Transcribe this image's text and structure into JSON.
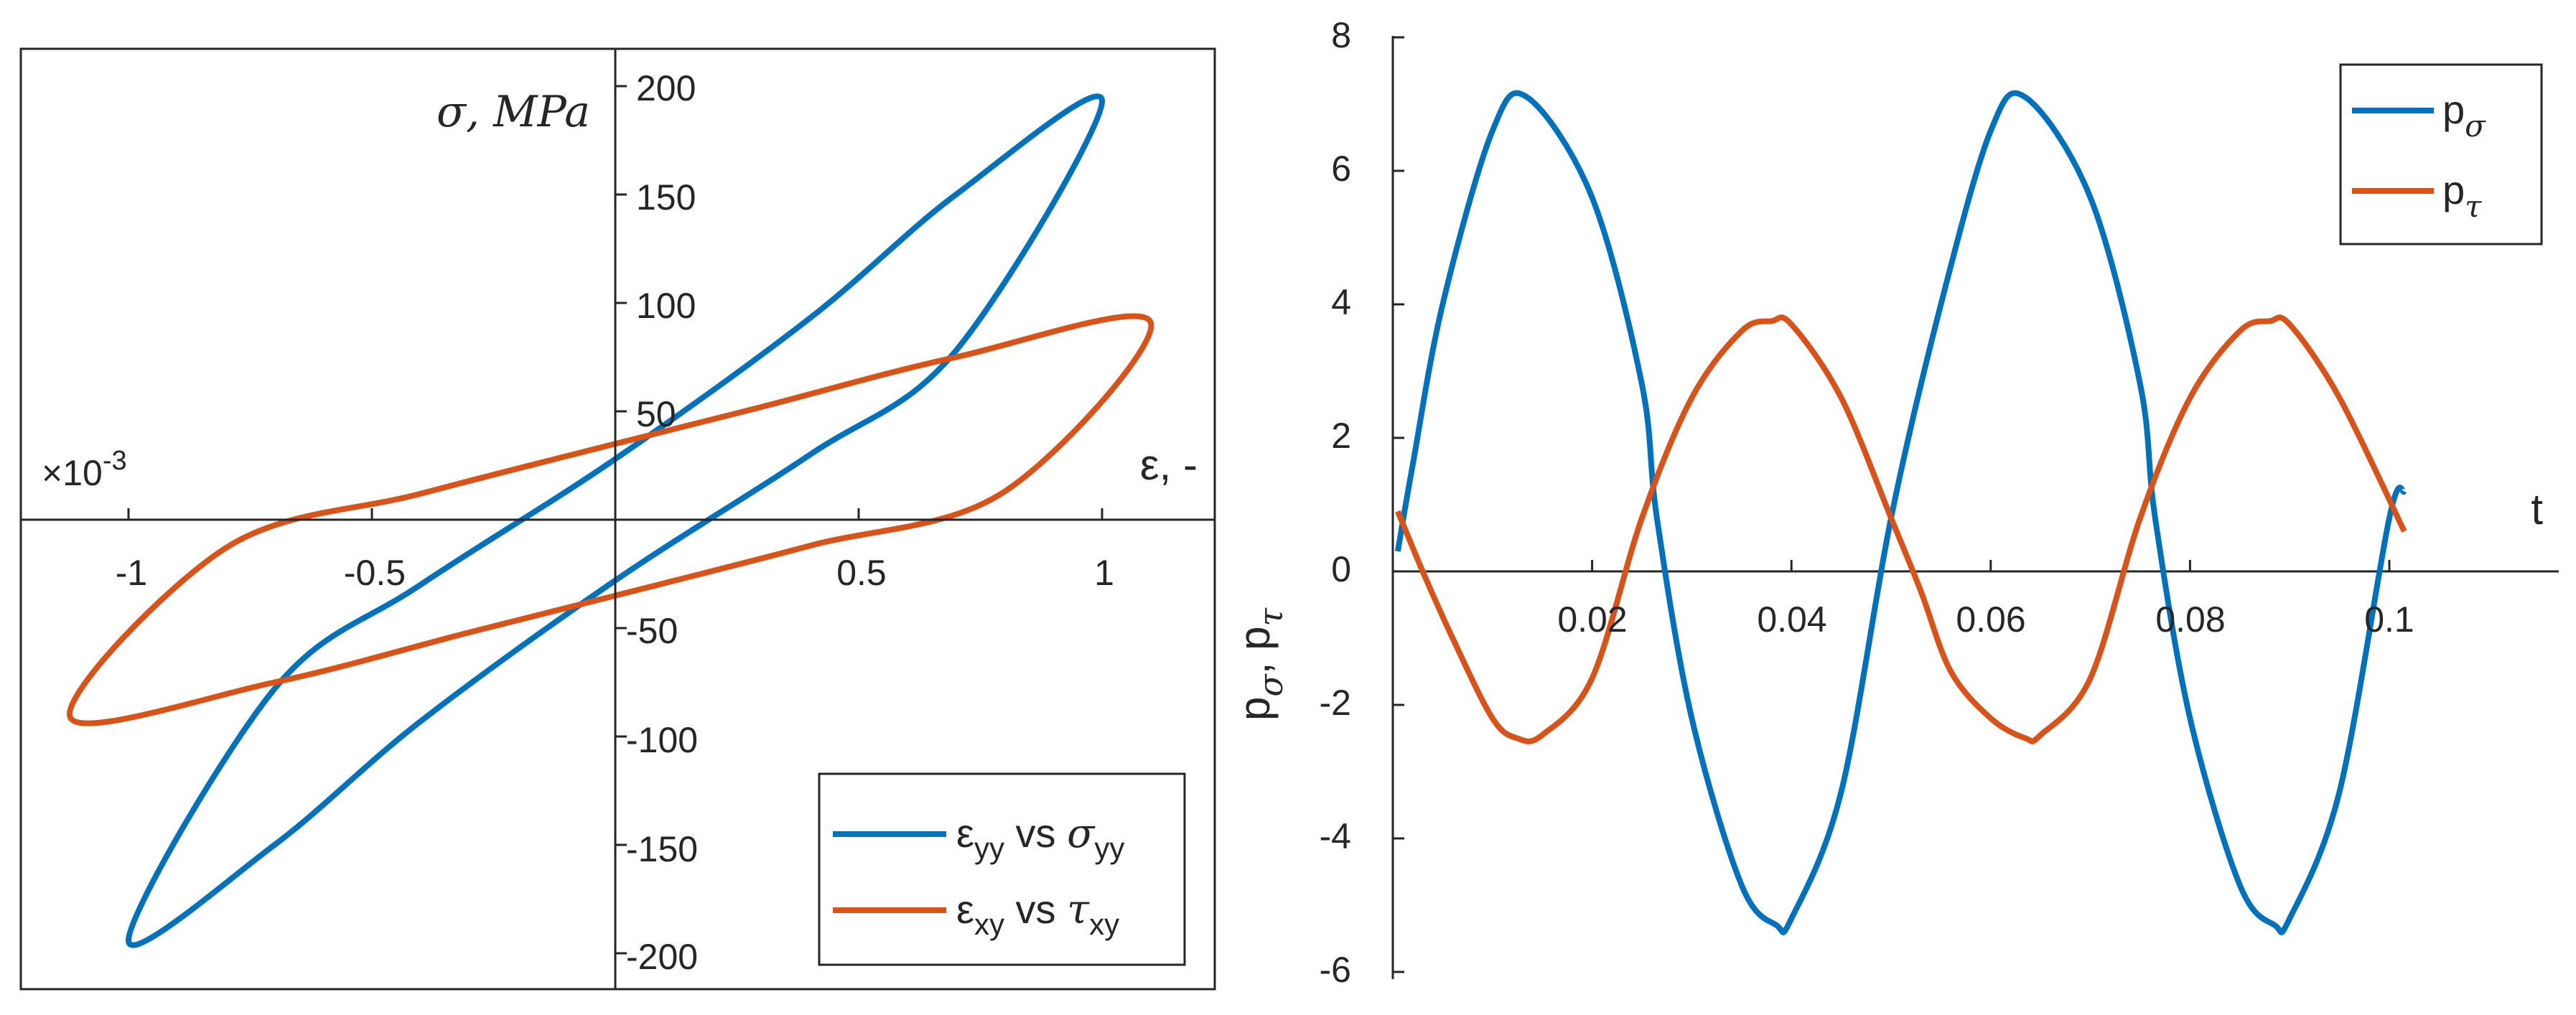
{
  "colors": {
    "blue": "#0072BD",
    "orange": "#D95319",
    "axis": "#262626"
  },
  "charts": {
    "hysteresis": {
      "xlabel": "ε, -",
      "ylabel": "σ, MPa",
      "exponent": "×10",
      "exponent_power": "-3",
      "xtick_labels": [
        "-1",
        "-0.5",
        "0.5",
        "1"
      ],
      "ytick_labels": [
        "200",
        "150",
        "100",
        "50",
        "-50",
        "-100",
        "-150",
        "-200"
      ],
      "legend": {
        "placement": "bottom-right",
        "s1": {
          "pre": "ε",
          "sub1": "yy",
          "mid": " vs ",
          "greek": "σ",
          "sub2": "yy"
        },
        "s2": {
          "pre": "ε",
          "sub1": "xy",
          "mid": " vs ",
          "greek": "τ",
          "sub2": "xy"
        }
      }
    },
    "time": {
      "xlabel": "t",
      "ylabel": {
        "p": "p",
        "s1": "σ",
        "sep": ", p",
        "s2": "τ"
      },
      "xtick_labels": [
        "0.02",
        "0.04",
        "0.06",
        "0.08",
        "0.1"
      ],
      "ytick_labels": [
        "8",
        "6",
        "4",
        "2",
        "0",
        "-2",
        "-4",
        "-6"
      ],
      "legend": {
        "placement": "top-right",
        "s1": {
          "p": "p",
          "sub": "σ"
        },
        "s2": {
          "p": "p",
          "sub": "τ"
        }
      }
    }
  },
  "chart_data": [
    {
      "type": "line",
      "xlabel": "ε, -",
      "ylabel": "σ, MPa",
      "x_multiplier": "×10^-3",
      "xlim": [
        -1.2,
        1.2
      ],
      "ylim": [
        -215,
        215
      ],
      "xticks": [
        -1,
        -0.5,
        0.5,
        1
      ],
      "yticks": [
        -200,
        -150,
        -100,
        -50,
        50,
        100,
        150,
        200
      ],
      "axes_through_origin": true,
      "legend_placement": "bottom-right",
      "series": [
        {
          "name": "ε_yy vs σ_yy",
          "color": "#0072BD",
          "shape": "closed hysteresis loop",
          "x": [
            1.0,
            0.7,
            0.4,
            0.0,
            -0.4,
            -0.7,
            -1.0,
            -0.7,
            -0.4,
            0.0,
            0.4,
            0.7,
            1.0
          ],
          "y": [
            193,
            150,
            93,
            28,
            -30,
            -78,
            -194,
            -150,
            -93,
            -28,
            30,
            78,
            193
          ]
        },
        {
          "name": "ε_xy vs τ_xy",
          "color": "#D95319",
          "shape": "closed hysteresis loop",
          "x": [
            1.1,
            0.7,
            0.3,
            0.0,
            -0.4,
            -0.8,
            -1.12,
            -0.7,
            -0.3,
            0.0,
            0.4,
            0.8,
            1.1
          ],
          "y": [
            91,
            75,
            52,
            35,
            12,
            -13,
            -91,
            -75,
            -52,
            -35,
            -12,
            13,
            91
          ]
        }
      ]
    },
    {
      "type": "line",
      "xlabel": "t",
      "ylabel": "p_σ, p_τ",
      "xlim": [
        0,
        0.12
      ],
      "ylim": [
        -6,
        8
      ],
      "xticks": [
        0.02,
        0.04,
        0.06,
        0.08,
        0.1
      ],
      "yticks": [
        -6,
        -4,
        -2,
        0,
        2,
        4,
        6,
        8
      ],
      "legend_placement": "top-right",
      "series": [
        {
          "name": "p_σ",
          "color": "#0072BD",
          "x": [
            0.0005,
            0.002,
            0.005,
            0.01,
            0.0135,
            0.02,
            0.025,
            0.0265,
            0.03,
            0.035,
            0.0385,
            0.04,
            0.045,
            0.05,
            0.055,
            0.06,
            0.0635,
            0.07,
            0.075,
            0.0765,
            0.08,
            0.085,
            0.0885,
            0.09,
            0.095,
            0.1,
            0.1015
          ],
          "y": [
            0.3,
            1.6,
            4.0,
            6.6,
            7.1,
            5.6,
            2.8,
            0.8,
            -2.2,
            -4.7,
            -5.3,
            -5.2,
            -3.3,
            0.8,
            4.0,
            6.6,
            7.1,
            5.6,
            2.8,
            0.8,
            -2.2,
            -4.7,
            -5.3,
            -5.2,
            -3.3,
            0.8,
            1.2
          ]
        },
        {
          "name": "p_τ",
          "color": "#D95319",
          "x": [
            0.0005,
            0.003,
            0.006,
            0.01,
            0.0125,
            0.015,
            0.02,
            0.025,
            0.03,
            0.035,
            0.038,
            0.04,
            0.045,
            0.05,
            0.053,
            0.056,
            0.06,
            0.0635,
            0.065,
            0.07,
            0.075,
            0.08,
            0.085,
            0.088,
            0.09,
            0.095,
            0.1015
          ],
          "y": [
            0.9,
            0.0,
            -1.0,
            -2.2,
            -2.5,
            -2.45,
            -1.6,
            0.8,
            2.6,
            3.6,
            3.75,
            3.7,
            2.6,
            0.8,
            -0.3,
            -1.5,
            -2.2,
            -2.5,
            -2.45,
            -1.6,
            0.8,
            2.6,
            3.6,
            3.75,
            3.7,
            2.6,
            0.6
          ]
        }
      ]
    }
  ]
}
